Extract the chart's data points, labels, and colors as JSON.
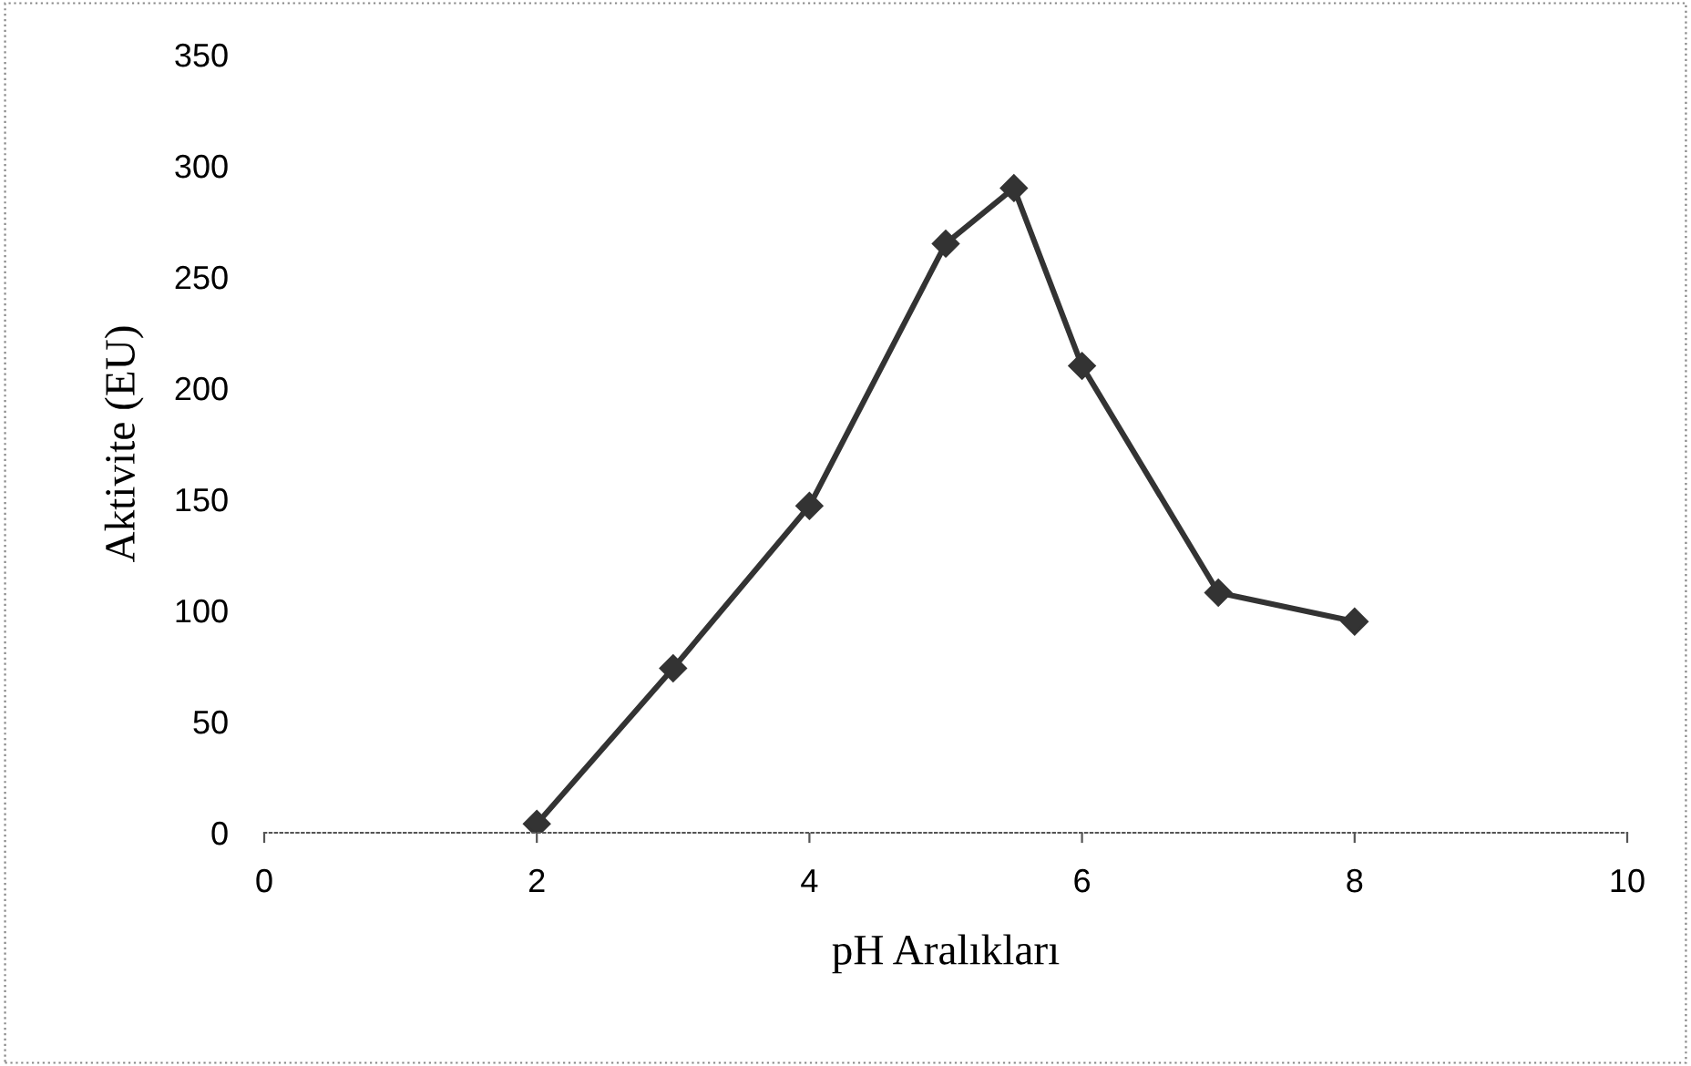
{
  "chart_data": {
    "type": "line",
    "xlabel": "pH Aralıkları",
    "ylabel": "Aktivite (EU)",
    "x": [
      2,
      3,
      4,
      5,
      5.5,
      6,
      7,
      8
    ],
    "series": [
      {
        "color": "#333333",
        "values": [
          4,
          74,
          147,
          265,
          290,
          210,
          108,
          95
        ]
      }
    ],
    "xlim": [
      0,
      10
    ],
    "xticks": [
      0,
      2,
      4,
      6,
      8,
      10
    ],
    "ylim": [
      0,
      350
    ],
    "yticks": [
      0,
      50,
      100,
      150,
      200,
      250,
      300,
      350
    ],
    "marker": "diamond",
    "line_style": "solid",
    "grid": false,
    "legend": false
  }
}
